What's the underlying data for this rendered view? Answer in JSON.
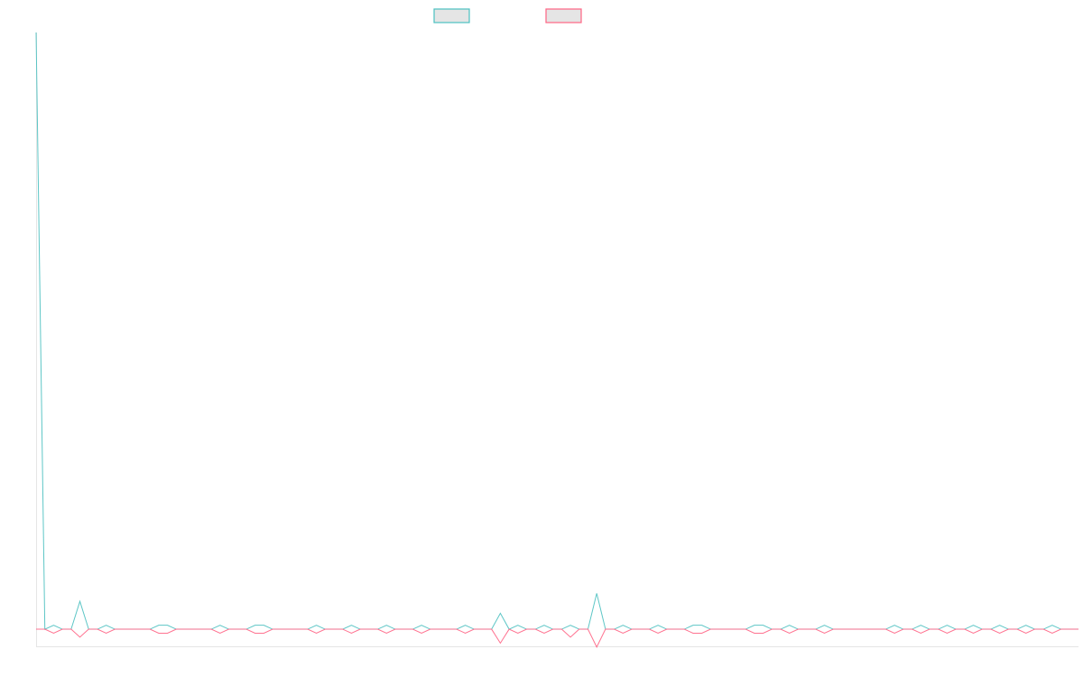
{
  "chart_data": {
    "type": "line",
    "title": "",
    "xlabel": "",
    "ylabel": "",
    "point_count": 120,
    "ylim": [
      -4.3,
      150
    ],
    "grid": false,
    "legend": {
      "placement": "top",
      "entries": [
        {
          "color": "#4bc0c0",
          "fill": "#e5e5e5"
        },
        {
          "color": "#ff6384",
          "fill": "#e5e5e5"
        }
      ]
    },
    "series": [
      {
        "color": "#4bc0c0",
        "points": [
          [
            0,
            150
          ],
          [
            2,
            1
          ],
          [
            5,
            7
          ],
          [
            8,
            1
          ],
          [
            14,
            1
          ],
          [
            15,
            1
          ],
          [
            21,
            1
          ],
          [
            25,
            1
          ],
          [
            26,
            1
          ],
          [
            32,
            1
          ],
          [
            36,
            1
          ],
          [
            40,
            1
          ],
          [
            44,
            1
          ],
          [
            49,
            1
          ],
          [
            53,
            4
          ],
          [
            55,
            1
          ],
          [
            58,
            1
          ],
          [
            61,
            1
          ],
          [
            64,
            9
          ],
          [
            67,
            1
          ],
          [
            71,
            1
          ],
          [
            75,
            1
          ],
          [
            76,
            1
          ],
          [
            82,
            1
          ],
          [
            83,
            1
          ],
          [
            86,
            1
          ],
          [
            90,
            1
          ],
          [
            98,
            1
          ],
          [
            101,
            1
          ],
          [
            104,
            1
          ],
          [
            107,
            1
          ],
          [
            110,
            1
          ],
          [
            113,
            1
          ],
          [
            116,
            1
          ]
        ]
      },
      {
        "color": "#ff6384",
        "points": [
          [
            2,
            -1
          ],
          [
            5,
            -2
          ],
          [
            8,
            -1
          ],
          [
            14,
            -1
          ],
          [
            15,
            -1
          ],
          [
            21,
            -1
          ],
          [
            25,
            -1
          ],
          [
            26,
            -1
          ],
          [
            32,
            -1
          ],
          [
            36,
            -1
          ],
          [
            40,
            -1
          ],
          [
            44,
            -1
          ],
          [
            49,
            -1
          ],
          [
            53,
            -3.5
          ],
          [
            55,
            -1
          ],
          [
            58,
            -1
          ],
          [
            61,
            -2
          ],
          [
            64,
            -4.5
          ],
          [
            67,
            -1
          ],
          [
            71,
            -1
          ],
          [
            75,
            -1
          ],
          [
            76,
            -1
          ],
          [
            82,
            -1
          ],
          [
            83,
            -1
          ],
          [
            86,
            -1
          ],
          [
            90,
            -1
          ],
          [
            98,
            -1
          ],
          [
            101,
            -1
          ],
          [
            104,
            -1
          ],
          [
            107,
            -1
          ],
          [
            110,
            -1
          ],
          [
            113,
            -1
          ],
          [
            116,
            -1
          ]
        ]
      }
    ]
  }
}
